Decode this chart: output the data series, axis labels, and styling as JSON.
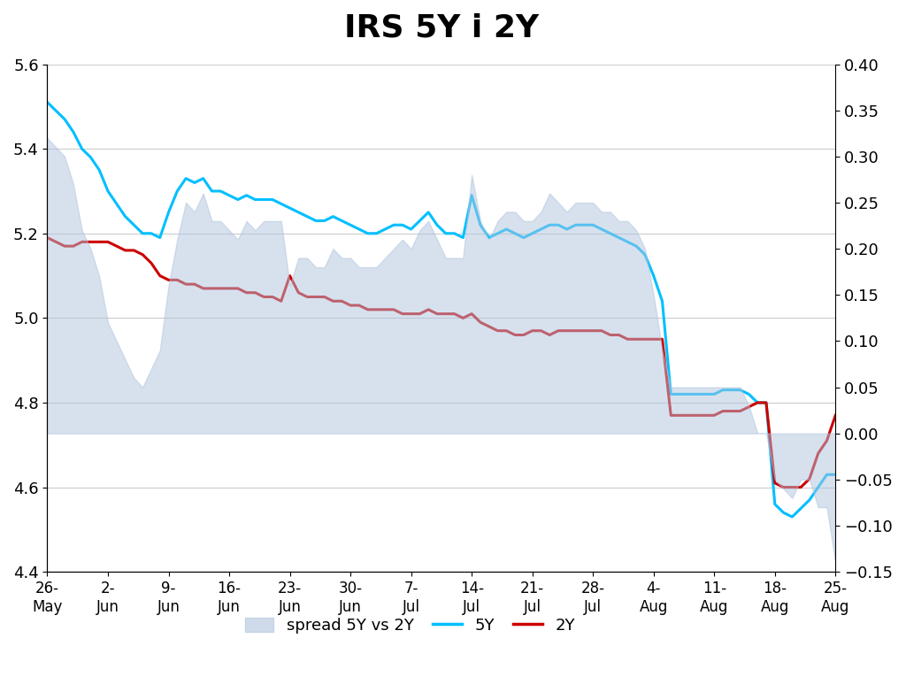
{
  "title": "IRS 5Y i 2Y",
  "title_fontsize": 26,
  "title_fontweight": "bold",
  "xlabels": [
    "26-\nMay",
    "2-\nJun",
    "9-\nJun",
    "16-\nJun",
    "23-\nJun",
    "30-\nJun",
    "7-\nJul",
    "14-\nJul",
    "21-\nJul",
    "28-\nJul",
    "4-\nAug",
    "11-\nAug",
    "18-\nAug",
    "25-\nAug"
  ],
  "ylim_left": [
    4.4,
    5.6
  ],
  "ylim_right": [
    -0.15,
    0.4
  ],
  "yticks_left": [
    4.4,
    4.6,
    4.8,
    5.0,
    5.2,
    5.4,
    5.6
  ],
  "yticks_right": [
    -0.15,
    -0.1,
    -0.05,
    0.0,
    0.05,
    0.1,
    0.15,
    0.2,
    0.25,
    0.3,
    0.35,
    0.4
  ],
  "color_5Y": "#00BFFF",
  "color_2Y": "#CC0000",
  "color_spread": "#B0C4DE",
  "legend_labels": [
    "spread 5Y vs 2Y",
    "5Y",
    "2Y"
  ],
  "xtick_positions": [
    0,
    7,
    14,
    21,
    28,
    35,
    42,
    49,
    56,
    63,
    70,
    77,
    84,
    91
  ],
  "y5Y": [
    5.51,
    5.49,
    5.47,
    5.44,
    5.4,
    5.38,
    5.35,
    5.3,
    5.27,
    5.24,
    5.22,
    5.2,
    5.2,
    5.19,
    5.25,
    5.3,
    5.33,
    5.32,
    5.33,
    5.3,
    5.3,
    5.29,
    5.28,
    5.29,
    5.28,
    5.28,
    5.28,
    5.27,
    5.26,
    5.25,
    5.24,
    5.23,
    5.23,
    5.24,
    5.23,
    5.22,
    5.21,
    5.2,
    5.2,
    5.21,
    5.22,
    5.22,
    5.21,
    5.23,
    5.25,
    5.22,
    5.2,
    5.2,
    5.19,
    5.29,
    5.22,
    5.19,
    5.2,
    5.21,
    5.2,
    5.19,
    5.2,
    5.21,
    5.22,
    5.22,
    5.21,
    5.22,
    5.22,
    5.22,
    5.21,
    5.2,
    5.19,
    5.18,
    5.17,
    5.15,
    5.1,
    5.04,
    4.82,
    4.82,
    4.82,
    4.82,
    4.82,
    4.82,
    4.83,
    4.83,
    4.83,
    4.82,
    4.8,
    4.8,
    4.56,
    4.54,
    4.53,
    4.55,
    4.57,
    4.6,
    4.63,
    4.63
  ],
  "y2Y": [
    5.19,
    5.18,
    5.17,
    5.17,
    5.18,
    5.18,
    5.18,
    5.18,
    5.17,
    5.16,
    5.16,
    5.15,
    5.13,
    5.1,
    5.09,
    5.09,
    5.08,
    5.08,
    5.07,
    5.07,
    5.07,
    5.07,
    5.07,
    5.06,
    5.06,
    5.05,
    5.05,
    5.04,
    5.1,
    5.06,
    5.05,
    5.05,
    5.05,
    5.04,
    5.04,
    5.03,
    5.03,
    5.02,
    5.02,
    5.02,
    5.02,
    5.01,
    5.01,
    5.01,
    5.02,
    5.01,
    5.01,
    5.01,
    5.0,
    5.01,
    4.99,
    4.98,
    4.97,
    4.97,
    4.96,
    4.96,
    4.97,
    4.97,
    4.96,
    4.97,
    4.97,
    4.97,
    4.97,
    4.97,
    4.97,
    4.96,
    4.96,
    4.95,
    4.95,
    4.95,
    4.95,
    4.95,
    4.77,
    4.77,
    4.77,
    4.77,
    4.77,
    4.77,
    4.78,
    4.78,
    4.78,
    4.79,
    4.8,
    4.8,
    4.61,
    4.6,
    4.6,
    4.6,
    4.62,
    4.68,
    4.71,
    4.77
  ]
}
